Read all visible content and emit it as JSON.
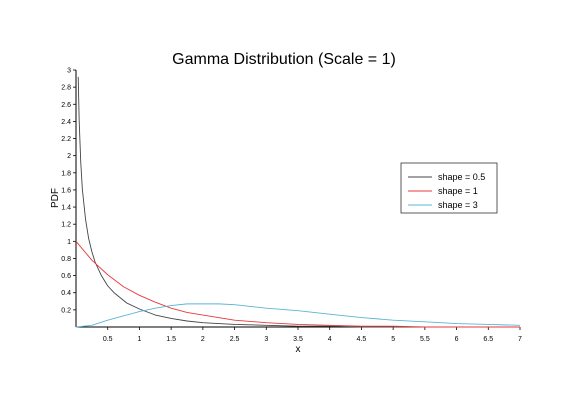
{
  "chart_data": {
    "type": "line",
    "title": "Gamma Distribution (Scale = 1)",
    "xlabel": "x",
    "ylabel": "PDF",
    "xlim": [
      0,
      7
    ],
    "ylim": [
      0,
      3
    ],
    "xticks": [
      "0.5",
      "1",
      "1.5",
      "2",
      "2.5",
      "3",
      "3.5",
      "4",
      "4.5",
      "5",
      "5.5",
      "6",
      "6.5",
      "7"
    ],
    "yticks": [
      "0.2",
      "0.4",
      "0.6",
      "0.8",
      "1",
      "1.2",
      "1.4",
      "1.6",
      "1.8",
      "2",
      "2.2",
      "2.4",
      "2.6",
      "2.8",
      "3"
    ],
    "grid": false,
    "legend_position": "right",
    "series": [
      {
        "name": "shape = 0.5",
        "color": "#444444",
        "x": [
          0.035,
          0.05,
          0.075,
          0.1,
          0.15,
          0.2,
          0.25,
          0.3,
          0.4,
          0.5,
          0.6,
          0.7,
          0.8,
          1.0,
          1.25,
          1.5,
          1.75,
          2.0,
          2.5,
          3.0,
          3.5,
          4.0,
          4.5,
          5.0,
          5.5,
          6.0,
          6.5,
          7.0
        ],
        "y": [
          2.92,
          2.41,
          1.92,
          1.61,
          1.26,
          1.03,
          0.88,
          0.76,
          0.6,
          0.48,
          0.4,
          0.34,
          0.28,
          0.21,
          0.14,
          0.1,
          0.07,
          0.05,
          0.03,
          0.02,
          0.01,
          0.01,
          0.0,
          0.0,
          0.0,
          0.0,
          0.0,
          0.0
        ]
      },
      {
        "name": "shape = 1",
        "color": "#e8383a",
        "x": [
          0,
          0.25,
          0.5,
          0.75,
          1.0,
          1.25,
          1.5,
          1.75,
          2.0,
          2.5,
          3.0,
          3.5,
          4.0,
          4.5,
          5.0,
          5.5,
          6.0,
          6.5,
          7.0
        ],
        "y": [
          1.0,
          0.78,
          0.61,
          0.47,
          0.37,
          0.29,
          0.22,
          0.17,
          0.14,
          0.08,
          0.05,
          0.03,
          0.02,
          0.01,
          0.01,
          0.0,
          0.0,
          0.0,
          0.0
        ]
      },
      {
        "name": "shape = 3",
        "color": "#5ab4d6",
        "x": [
          0,
          0.25,
          0.5,
          0.75,
          1.0,
          1.25,
          1.5,
          1.75,
          2.0,
          2.25,
          2.5,
          2.75,
          3.0,
          3.5,
          4.0,
          4.5,
          5.0,
          5.5,
          6.0,
          6.5,
          7.0
        ],
        "y": [
          0.0,
          0.02,
          0.08,
          0.13,
          0.18,
          0.22,
          0.25,
          0.27,
          0.27,
          0.27,
          0.26,
          0.24,
          0.22,
          0.19,
          0.15,
          0.11,
          0.08,
          0.06,
          0.04,
          0.03,
          0.02
        ]
      }
    ]
  }
}
